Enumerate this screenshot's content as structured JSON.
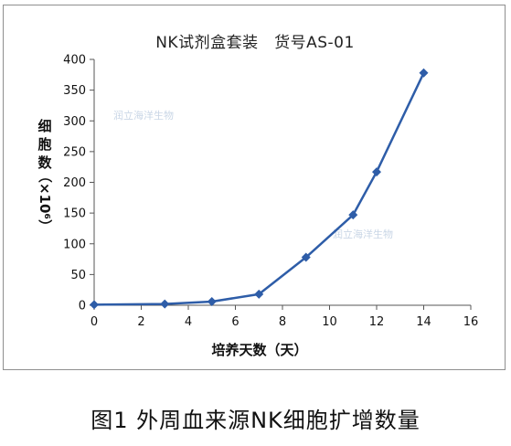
{
  "chart_data": {
    "type": "line",
    "title": "NK试剂盒套装　货号AS-01",
    "xlabel": "培养天数（天）",
    "ylabel_chars": [
      "细",
      "胞",
      "数"
    ],
    "ylabel_unit": "（×10⁶）",
    "xlim": [
      0,
      16
    ],
    "ylim": [
      0,
      400
    ],
    "x_ticks": [
      0,
      2,
      4,
      6,
      8,
      10,
      12,
      14,
      16
    ],
    "y_ticks": [
      0,
      50,
      100,
      150,
      200,
      250,
      300,
      350,
      400
    ],
    "grid": false,
    "series": [
      {
        "x": [
          0,
          3,
          5,
          7,
          9,
          11,
          12,
          14
        ],
        "y": [
          1,
          2,
          6,
          18,
          78,
          147,
          217,
          378
        ],
        "color": "#2e5da8",
        "marker": "diamond"
      }
    ],
    "watermark_text": "润立海洋生物"
  },
  "caption": "图1  外周血来源NK细胞扩增数量"
}
